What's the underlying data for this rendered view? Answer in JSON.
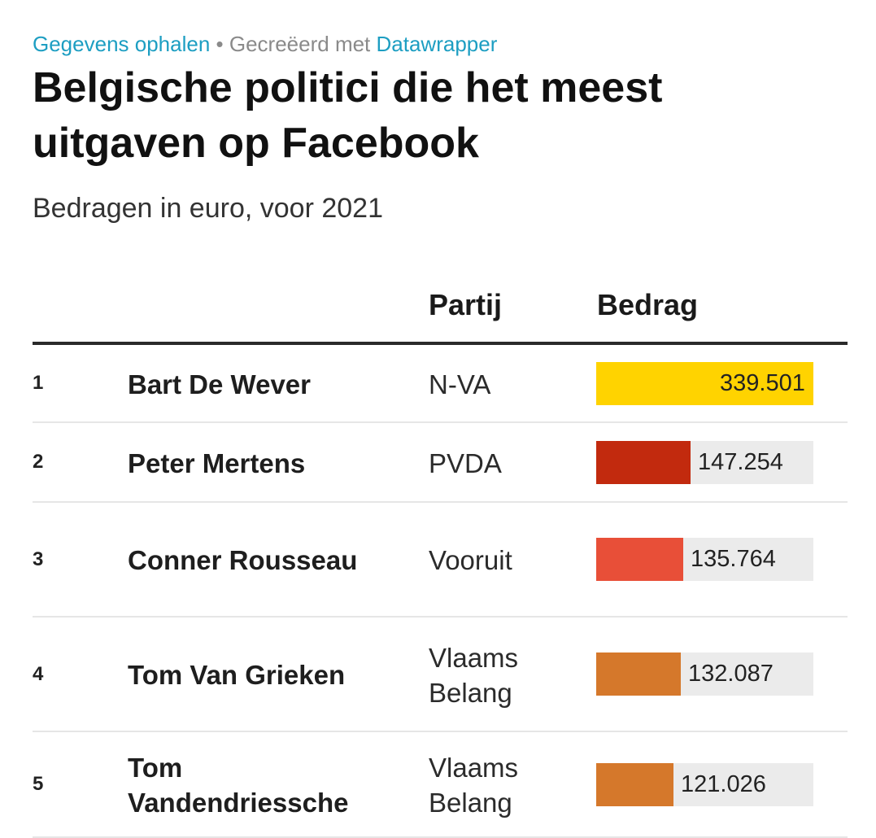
{
  "header": {
    "get_data_link": "Gegevens ophalen",
    "separator": "•",
    "created_with": "Gecreëerd met",
    "tool_link": "Datawrapper"
  },
  "chart_data": {
    "type": "table",
    "title": "Belgische politici die het meest uitgaven op Facebook",
    "subtitle": "Bedragen in euro, voor 2021",
    "columns": [
      "",
      "",
      "Partij",
      "Bedrag"
    ],
    "rows": [
      {
        "rank": "1",
        "name": "Bart De Wever",
        "party": "N-VA",
        "amount": 339501,
        "amount_label": "339.501",
        "color": "#ffd300"
      },
      {
        "rank": "2",
        "name": "Peter Mertens",
        "party": "PVDA",
        "amount": 147254,
        "amount_label": "147.254",
        "color": "#c22a0e"
      },
      {
        "rank": "3",
        "name": "Conner Rousseau",
        "party": "Vooruit",
        "amount": 135764,
        "amount_label": "135.764",
        "color": "#e84f38"
      },
      {
        "rank": "4",
        "name": "Tom Van Grieken",
        "party": "Vlaams Belang",
        "amount": 132087,
        "amount_label": "132.087",
        "color": "#d5782b"
      },
      {
        "rank": "5",
        "name": "Tom Vandendriessche",
        "party": "Vlaams Belang",
        "amount": 121026,
        "amount_label": "121.026",
        "color": "#d5782b"
      }
    ],
    "bar_max": 339501
  }
}
